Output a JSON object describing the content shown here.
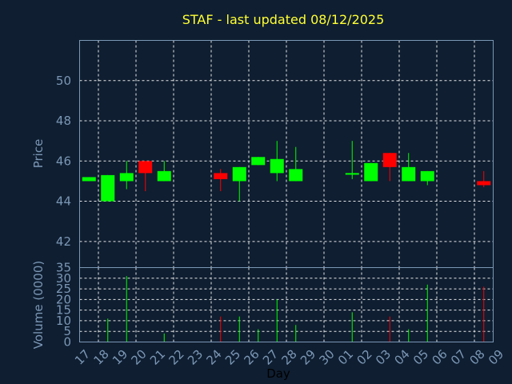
{
  "chart_data": {
    "type": "candlestick",
    "title": "STAF - last updated 08/12/2025",
    "xlabel": "Day",
    "price_panel": {
      "ylabel": "Price",
      "ylim": [
        40.7,
        52
      ],
      "yticks": [
        42,
        44,
        46,
        48,
        50
      ],
      "grid": true
    },
    "volume_panel": {
      "ylabel": "Volume (0000)",
      "ylim": [
        0,
        35
      ],
      "yticks": [
        0,
        5,
        10,
        15,
        20,
        25,
        30,
        35
      ],
      "grid": true
    },
    "x_tick_labels": [
      "17",
      "18",
      "19",
      "20",
      "21",
      "22",
      "23",
      "24",
      "25",
      "26",
      "27",
      "28",
      "29",
      "30",
      "01",
      "02",
      "03",
      "04",
      "05",
      "06",
      "07",
      "08",
      "09"
    ],
    "colors": {
      "up": "#00ff00",
      "down": "#ff0000"
    },
    "candles": [
      {
        "day": "17",
        "open": 45.0,
        "high": 45.2,
        "low": 45.0,
        "close": 45.2,
        "volume": 0
      },
      {
        "day": "18",
        "open": 44.0,
        "high": 45.3,
        "low": 44.0,
        "close": 45.3,
        "volume": 11
      },
      {
        "day": "19",
        "open": 45.0,
        "high": 46.0,
        "low": 44.6,
        "close": 45.4,
        "volume": 31
      },
      {
        "day": "20",
        "open": 46.0,
        "high": 46.0,
        "low": 44.5,
        "close": 45.4,
        "volume": 0
      },
      {
        "day": "21",
        "open": 45.0,
        "high": 46.0,
        "low": 45.0,
        "close": 45.5,
        "volume": 4
      },
      {
        "day": "24",
        "open": 45.4,
        "high": 45.6,
        "low": 44.5,
        "close": 45.1,
        "volume": 12
      },
      {
        "day": "25",
        "open": 45.0,
        "high": 45.7,
        "low": 44.0,
        "close": 45.7,
        "volume": 12
      },
      {
        "day": "26",
        "open": 45.8,
        "high": 46.2,
        "low": 45.8,
        "close": 46.2,
        "volume": 6
      },
      {
        "day": "27",
        "open": 45.4,
        "high": 47.0,
        "low": 45.0,
        "close": 46.1,
        "volume": 20
      },
      {
        "day": "28",
        "open": 45.0,
        "high": 46.7,
        "low": 45.0,
        "close": 45.6,
        "volume": 8
      },
      {
        "day": "01",
        "open": 45.4,
        "high": 47.0,
        "low": 45.1,
        "close": 45.4,
        "volume": 14
      },
      {
        "day": "02",
        "open": 45.0,
        "high": 45.9,
        "low": 45.0,
        "close": 45.9,
        "volume": 0
      },
      {
        "day": "03",
        "open": 46.4,
        "high": 46.4,
        "low": 45.0,
        "close": 45.7,
        "volume": 12
      },
      {
        "day": "04",
        "open": 45.0,
        "high": 46.4,
        "low": 45.0,
        "close": 45.7,
        "volume": 6
      },
      {
        "day": "05",
        "open": 45.0,
        "high": 45.5,
        "low": 44.8,
        "close": 45.5,
        "volume": 27
      },
      {
        "day": "08",
        "open": 45.0,
        "high": 45.5,
        "low": 44.7,
        "close": 44.8,
        "volume": 26
      }
    ]
  }
}
